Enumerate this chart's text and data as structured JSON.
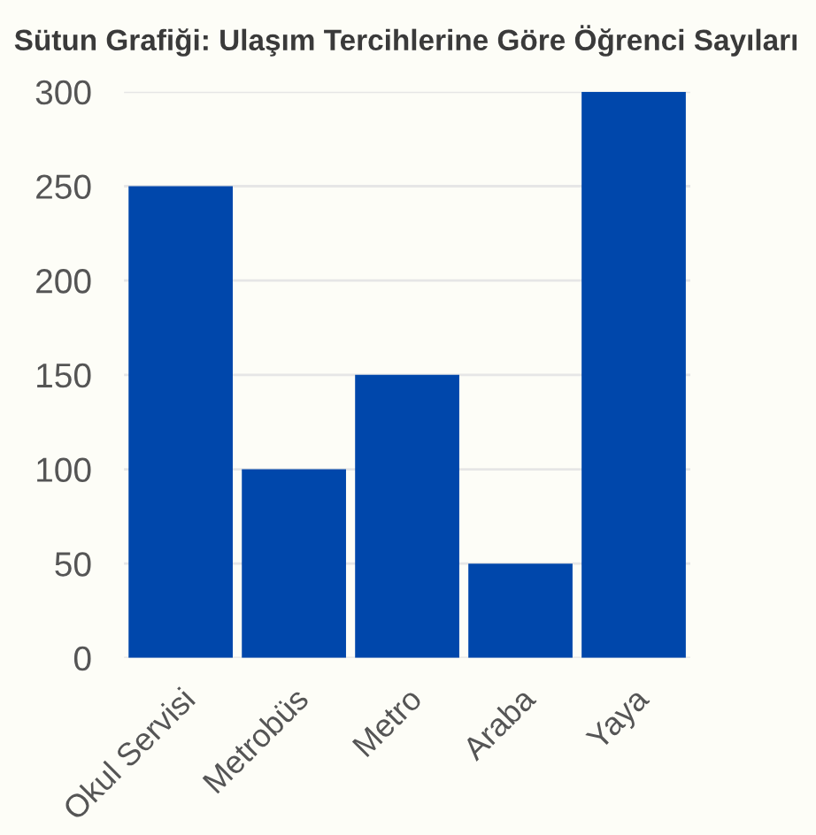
{
  "chart_data": {
    "type": "bar",
    "title": "Sütun Grafiği: Ulaşım Tercihlerine Göre Öğrenci Sayıları",
    "categories": [
      "Okul Servisi",
      "Metrobüs",
      "Metro",
      "Araba",
      "Yaya"
    ],
    "values": [
      250,
      100,
      150,
      50,
      300
    ],
    "color": "#0047ab",
    "ylim": [
      0,
      300
    ],
    "yticks": [
      0,
      50,
      100,
      150,
      200,
      250,
      300
    ],
    "grid": "y"
  }
}
